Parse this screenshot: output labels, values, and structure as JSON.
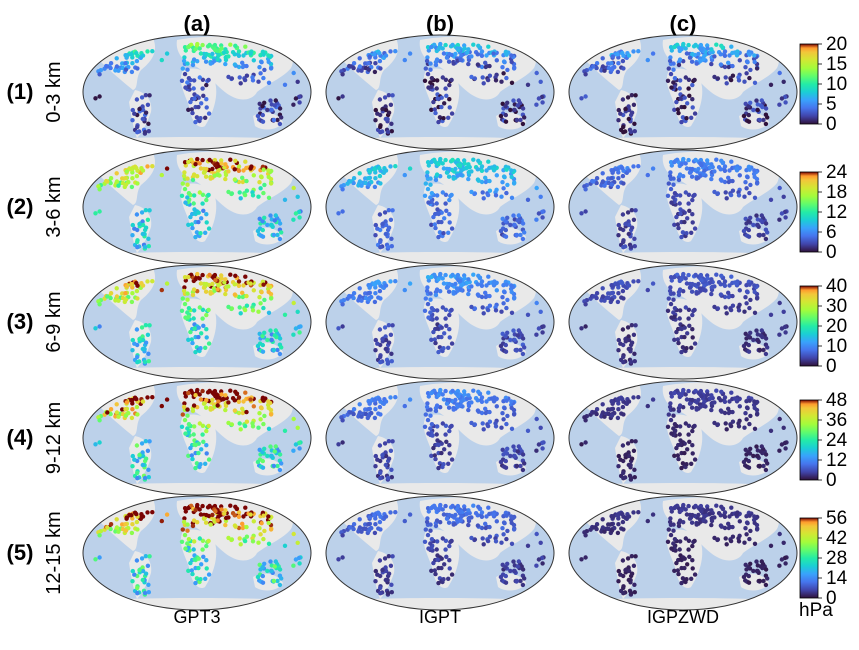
{
  "column_titles": [
    "(a)",
    "(b)",
    "(c)"
  ],
  "column_names": [
    "GPT3",
    "IGPT",
    "IGPZWD"
  ],
  "rows": [
    {
      "num": "(1)",
      "range": "0-3 km"
    },
    {
      "num": "(2)",
      "range": "3-6 km"
    },
    {
      "num": "(3)",
      "range": "6-9 km"
    },
    {
      "num": "(4)",
      "range": "9-12 km"
    },
    {
      "num": "(5)",
      "range": "12-15 km"
    }
  ],
  "colorbars": [
    {
      "ticks": [
        "20",
        "15",
        "10",
        "5",
        "0"
      ],
      "max": 20
    },
    {
      "ticks": [
        "24",
        "18",
        "12",
        "6",
        "0"
      ],
      "max": 24
    },
    {
      "ticks": [
        "40",
        "30",
        "20",
        "10",
        "0"
      ],
      "max": 40
    },
    {
      "ticks": [
        "48",
        "36",
        "24",
        "12",
        "0"
      ],
      "max": 48
    },
    {
      "ticks": [
        "56",
        "42",
        "28",
        "14",
        "0"
      ],
      "max": 56
    }
  ],
  "unit": "hPa",
  "colormap": "turbo",
  "colors": {
    "ocean": "#bcd1ea",
    "land": "#e9e9e9",
    "map_edge": "#333333"
  },
  "chart_data": {
    "type": "scatter",
    "subtype": "global station map grid, 5 rows x 3 columns",
    "row_mean_values_hPa": [
      {
        "row": "0-3 km",
        "GPT3": 7,
        "IGPT": 4,
        "IGPZWD": 4
      },
      {
        "row": "3-6 km",
        "GPT3": 16,
        "IGPT": 7,
        "IGPZWD": 4
      },
      {
        "row": "6-9 km",
        "GPT3": 28,
        "IGPT": 8,
        "IGPZWD": 4
      },
      {
        "row": "9-12 km",
        "GPT3": 38,
        "IGPT": 8,
        "IGPZWD": 3
      },
      {
        "row": "12-15 km",
        "GPT3": 44,
        "IGPT": 8,
        "IGPZWD": 3
      }
    ],
    "colorbar_ranges": [
      [
        0,
        20
      ],
      [
        0,
        24
      ],
      [
        0,
        40
      ],
      [
        0,
        48
      ],
      [
        0,
        56
      ]
    ]
  }
}
